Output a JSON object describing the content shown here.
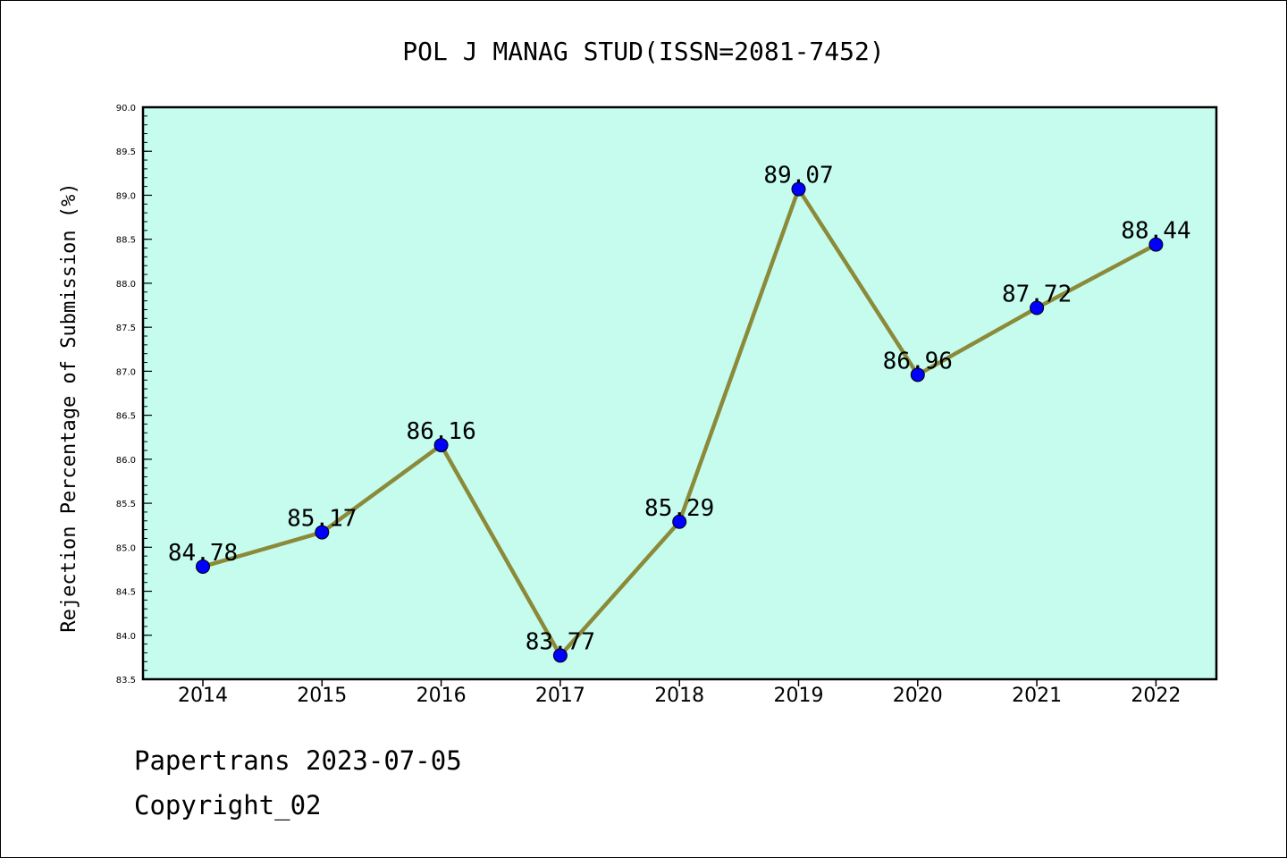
{
  "chart_data": {
    "type": "line",
    "title": "POL J MANAG STUD(ISSN=2081-7452)",
    "xlabel": "",
    "ylabel": "Rejection Percentage of Submission (%)",
    "categories": [
      "2014",
      "2015",
      "2016",
      "2017",
      "2018",
      "2019",
      "2020",
      "2021",
      "2022"
    ],
    "series": [
      {
        "values": [
          84.78,
          85.17,
          86.16,
          83.77,
          85.29,
          89.07,
          86.96,
          87.72,
          88.44
        ]
      }
    ],
    "data_labels": [
      "84.78",
      "85.17",
      "86.16",
      "83.77",
      "85.29",
      "89.07",
      "86.96",
      "87.72",
      "88.44"
    ],
    "ylim": [
      83.5,
      90.0
    ],
    "yticks": [
      "83.5",
      "84.0",
      "84.5",
      "85.0",
      "85.5",
      "86.0",
      "86.5",
      "87.0",
      "87.5",
      "88.0",
      "88.5",
      "89.0",
      "89.5",
      "90.0"
    ],
    "grid": false,
    "colors": {
      "plot_background": "#c6fcee",
      "line": "#8b8a3a",
      "marker": "#0000ff"
    }
  },
  "footer": {
    "source": "Papertrans 2023-07-05",
    "copyright": "Copyright_02"
  }
}
